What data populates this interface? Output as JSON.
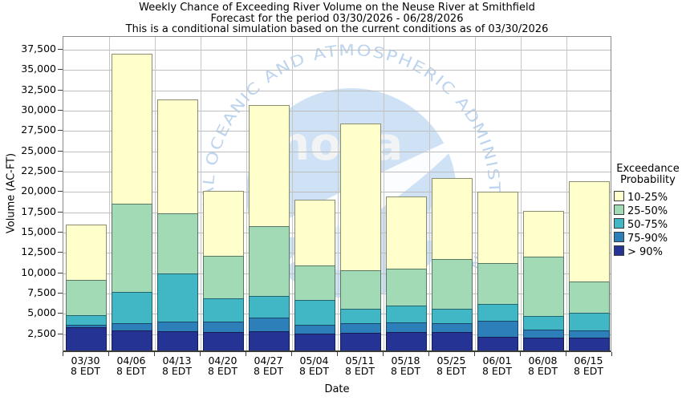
{
  "title": {
    "line1": "Weekly Chance of Exceeding River Volume on the Neuse River at Smithfield",
    "line2": "Forecast for the period 03/30/2026 - 06/28/2026",
    "line3": "This is a conditional simulation based on the current conditions as of 03/30/2026"
  },
  "y_axis": {
    "label": "Volume (AC-FT)",
    "ticks": [
      {
        "value": 2500,
        "label": "2,500"
      },
      {
        "value": 5000,
        "label": "5,000"
      },
      {
        "value": 7500,
        "label": "7,500"
      },
      {
        "value": 10000,
        "label": "10,000"
      },
      {
        "value": 12500,
        "label": "12,500"
      },
      {
        "value": 15000,
        "label": "15,000"
      },
      {
        "value": 17500,
        "label": "17,500"
      },
      {
        "value": 20000,
        "label": "20,000"
      },
      {
        "value": 22500,
        "label": "22,500"
      },
      {
        "value": 25000,
        "label": "25,000"
      },
      {
        "value": 27500,
        "label": "27,500"
      },
      {
        "value": 30000,
        "label": "30,000"
      },
      {
        "value": 32500,
        "label": "32,500"
      },
      {
        "value": 35000,
        "label": "35,000"
      },
      {
        "value": 37500,
        "label": "37,500"
      }
    ]
  },
  "x_axis": {
    "label": "Date",
    "time_label": "8 EDT",
    "dates": [
      "03/30",
      "04/06",
      "04/13",
      "04/20",
      "04/27",
      "05/04",
      "05/11",
      "05/18",
      "05/25",
      "06/01",
      "06/08",
      "06/15"
    ]
  },
  "legend": {
    "title_line1": "Exceedance",
    "title_line2": "Probability",
    "items": [
      {
        "label": "10-25%",
        "color": "#FFFFCC"
      },
      {
        "label": "25-50%",
        "color": "#A1DAB4"
      },
      {
        "label": "50-75%",
        "color": "#41B6C4"
      },
      {
        "label": "75-90%",
        "color": "#2C7FB8"
      },
      {
        "label": "> 90%",
        "color": "#253494"
      }
    ]
  },
  "watermark": {
    "arc_text": "NATIONAL OCEANIC AND ATMOSPHERIC ADMINISTRATION",
    "center_text": "noaa"
  },
  "chart_data": {
    "type": "bar",
    "stacked": true,
    "title": "Weekly Chance of Exceeding River Volume on the Neuse River at Smithfield",
    "xlabel": "Date",
    "ylabel": "Volume (AC-FT)",
    "ylim": [
      0,
      39000
    ],
    "grid": true,
    "legend_position": "right",
    "categories": [
      "03/30",
      "04/06",
      "04/13",
      "04/20",
      "04/27",
      "05/04",
      "05/11",
      "05/18",
      "05/25",
      "06/01",
      "06/08",
      "06/15"
    ],
    "values_note": "cumulative_top_acft is the volume (AC-FT) at the top of each stacked exceedance-probability band, stacked bottom-to-top",
    "series": [
      {
        "name": "> 90%",
        "color": "#253494",
        "cumulative_top_acft": [
          3400,
          2950,
          2900,
          2800,
          2850,
          2550,
          2700,
          2800,
          2800,
          2150,
          2050,
          2050
        ]
      },
      {
        "name": "75-90%",
        "color": "#2C7FB8",
        "cumulative_top_acft": [
          3700,
          3850,
          4050,
          4050,
          4500,
          3700,
          3850,
          3950,
          3850,
          4100,
          3100,
          2950
        ]
      },
      {
        "name": "50-75%",
        "color": "#41B6C4",
        "cumulative_top_acft": [
          4850,
          7700,
          9950,
          6900,
          7200,
          6700,
          5600,
          6050,
          5650,
          6200,
          4700,
          5150
        ]
      },
      {
        "name": "25-50%",
        "color": "#A1DAB4",
        "cumulative_top_acft": [
          9200,
          18550,
          17400,
          12150,
          15800,
          11000,
          10400,
          10600,
          11700,
          11250,
          12000,
          9000
        ]
      },
      {
        "name": "10-25%",
        "color": "#FFFFCC",
        "cumulative_top_acft": [
          15950,
          37000,
          31350,
          20150,
          30650,
          19050,
          28400,
          19450,
          21700,
          20000,
          17650,
          21350
        ]
      }
    ]
  }
}
